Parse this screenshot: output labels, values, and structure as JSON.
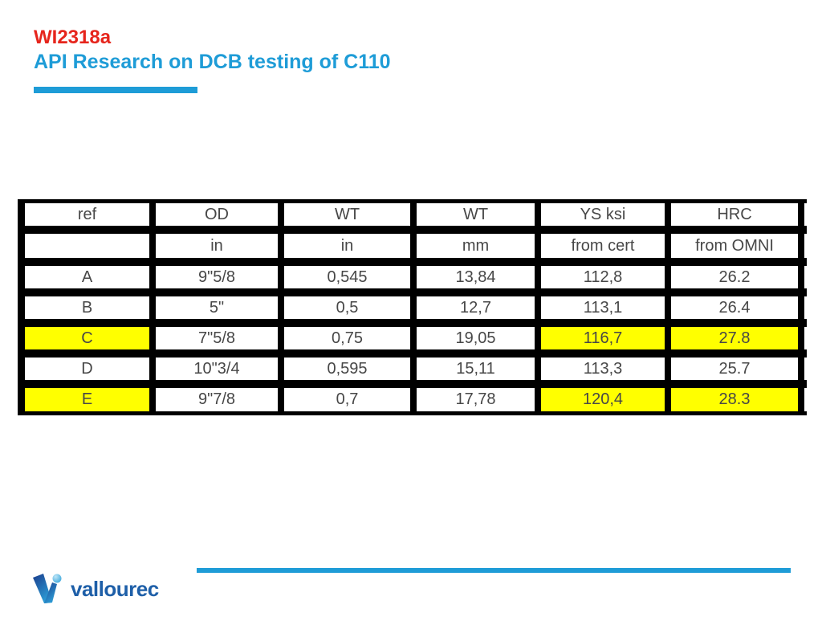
{
  "slide": {
    "title_line1": "WI2318a",
    "title_line2": "API Research on DCB testing of C110",
    "accent_red": "#E6251C",
    "accent_blue": "#1E9CD7"
  },
  "table": {
    "header_row1": [
      "ref",
      "OD",
      "WT",
      "WT",
      "YS ksi",
      "HRC"
    ],
    "header_row2": [
      "",
      "in",
      "in",
      "mm",
      "from cert",
      "from OMNI"
    ],
    "rows": [
      {
        "cells": [
          "A",
          "9\"5/8",
          "0,545",
          "13,84",
          "112,8",
          "26.2"
        ],
        "highlight": [
          false,
          false,
          false,
          false,
          false,
          false
        ]
      },
      {
        "cells": [
          "B",
          "5\"",
          "0,5",
          "12,7",
          "113,1",
          "26.4"
        ],
        "highlight": [
          false,
          false,
          false,
          false,
          false,
          false
        ]
      },
      {
        "cells": [
          "C",
          "7\"5/8",
          "0,75",
          "19,05",
          "116,7",
          "27.8"
        ],
        "highlight": [
          true,
          false,
          false,
          false,
          true,
          true
        ]
      },
      {
        "cells": [
          "D",
          "10\"3/4",
          "0,595",
          "15,11",
          "113,3",
          "25.7"
        ],
        "highlight": [
          false,
          false,
          false,
          false,
          false,
          false
        ]
      },
      {
        "cells": [
          "E",
          "9\"7/8",
          "0,7",
          "17,78",
          "120,4",
          "28.3"
        ],
        "highlight": [
          true,
          false,
          false,
          false,
          true,
          true
        ]
      }
    ],
    "highlight_color": "#FFFF00"
  },
  "footer": {
    "logo_text": "vallourec"
  }
}
